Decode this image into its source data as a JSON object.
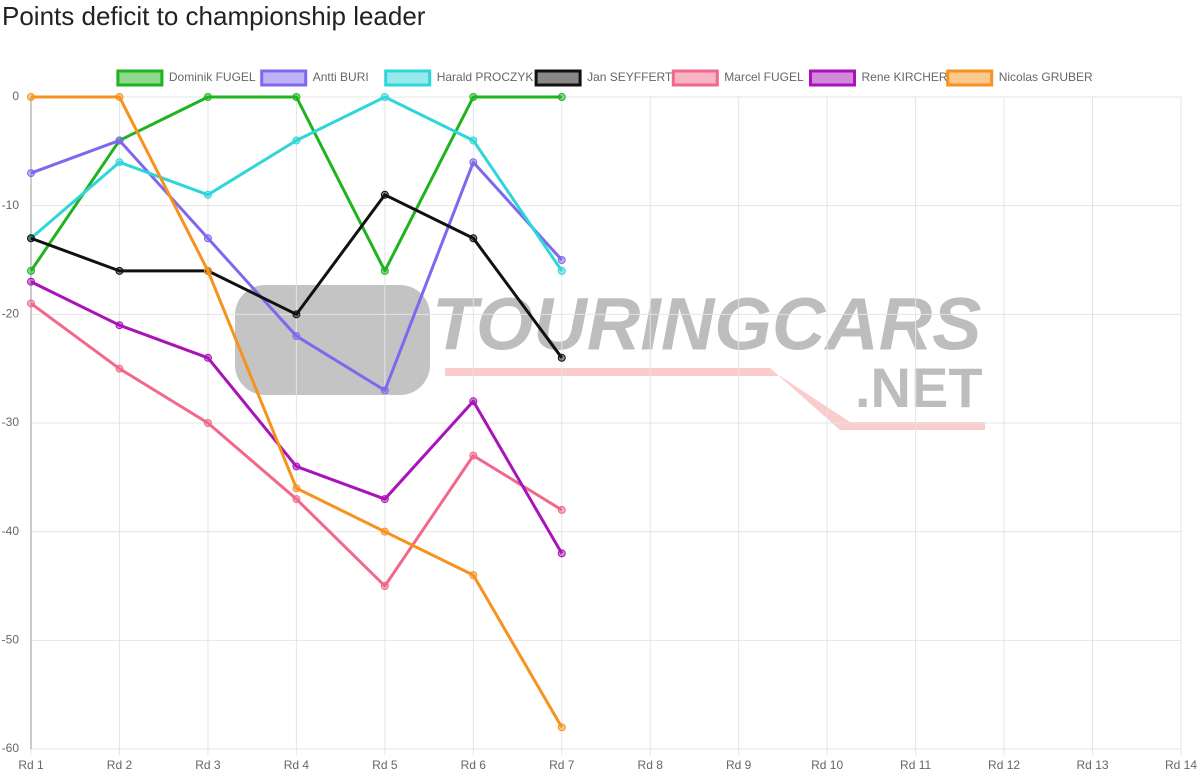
{
  "chart_data": {
    "type": "line",
    "title": "Points deficit to championship leader",
    "categories": [
      "Rd 1",
      "Rd 2",
      "Rd 3",
      "Rd 4",
      "Rd 5",
      "Rd 6",
      "Rd 7",
      "Rd 8",
      "Rd 9",
      "Rd 10",
      "Rd 11",
      "Rd 12",
      "Rd 13",
      "Rd 14"
    ],
    "series": [
      {
        "name": "Dominik FUGEL",
        "color": "#1fb41f",
        "values": [
          -16,
          -4,
          0,
          0,
          -16,
          0,
          0,
          null,
          null,
          null,
          null,
          null,
          null,
          null
        ]
      },
      {
        "name": "Antti BURI",
        "color": "#7f68ee",
        "values": [
          -7,
          -4,
          -13,
          -22,
          -27,
          -6,
          -15,
          null,
          null,
          null,
          null,
          null,
          null,
          null
        ]
      },
      {
        "name": "Harald PROCZYK",
        "color": "#2ed6da",
        "values": [
          -13,
          -6,
          -9,
          -4,
          0,
          -4,
          -16,
          null,
          null,
          null,
          null,
          null,
          null,
          null
        ]
      },
      {
        "name": "Jan SEYFFERT",
        "color": "#111111",
        "values": [
          -13,
          -16,
          -16,
          -20,
          -9,
          -13,
          -24,
          null,
          null,
          null,
          null,
          null,
          null,
          null
        ]
      },
      {
        "name": "Marcel FUGEL",
        "color": "#f2688a",
        "values": [
          -19,
          -25,
          -30,
          -37,
          -45,
          -33,
          -38,
          null,
          null,
          null,
          null,
          null,
          null,
          null
        ]
      },
      {
        "name": "Rene KIRCHER",
        "color": "#a814b8",
        "values": [
          -17,
          -21,
          -24,
          -34,
          -37,
          -28,
          -42,
          null,
          null,
          null,
          null,
          null,
          null,
          null
        ]
      },
      {
        "name": "Nicolas GRUBER",
        "color": "#f7921e",
        "values": [
          0,
          0,
          -16,
          -36,
          -40,
          -44,
          -58,
          null,
          null,
          null,
          null,
          null,
          null,
          null
        ]
      }
    ],
    "ylim": [
      -60,
      0
    ],
    "yticks": [
      0,
      -10,
      -20,
      -30,
      -40,
      -50,
      -60
    ],
    "grid": true,
    "watermark": {
      "text": "TOURINGCARS",
      "suffix": ".NET"
    }
  }
}
